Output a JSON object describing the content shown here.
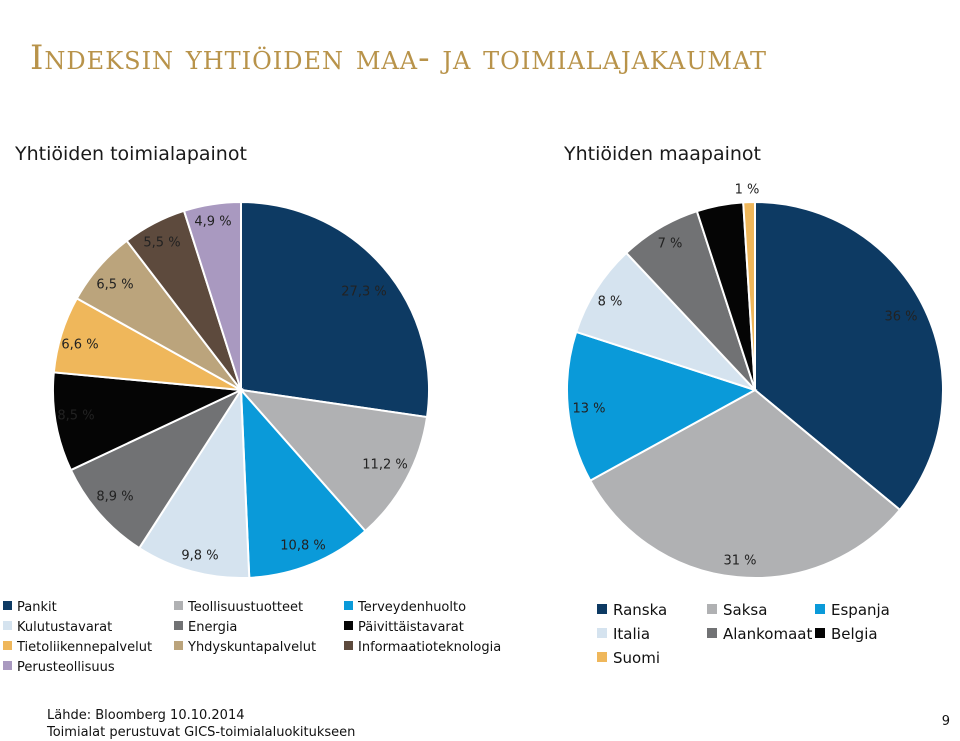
{
  "title": "Indeksin yhtiöiden maa- ja toimialajakaumat",
  "chart_data": [
    {
      "type": "pie",
      "title": "Yhtiöiden toimialapainot",
      "slices": [
        {
          "label": "Pankit",
          "value": 27.3,
          "value_label": "27,3 %",
          "color": "#0d3a63"
        },
        {
          "label": "Teollisuustuotteet",
          "value": 11.2,
          "value_label": "11,2 %",
          "color": "#b0b1b3"
        },
        {
          "label": "Terveydenhuolto",
          "value": 10.8,
          "value_label": "10,8 %",
          "color": "#0a9ad9"
        },
        {
          "label": "Kulutustavarat",
          "value": 9.8,
          "value_label": "9,8 %",
          "color": "#d5e3ef"
        },
        {
          "label": "Energia",
          "value": 8.9,
          "value_label": "8,9 %",
          "color": "#717274"
        },
        {
          "label": "Päivittäistavarat",
          "value": 8.5,
          "value_label": "8,5 %",
          "color": "#050505"
        },
        {
          "label": "Tietoliikennepalvelut",
          "value": 6.6,
          "value_label": "6,6 %",
          "color": "#efb75b"
        },
        {
          "label": "Yhdyskuntapalvelut",
          "value": 6.5,
          "value_label": "6,5 %",
          "color": "#bba47c"
        },
        {
          "label": "Informaatioteknologia",
          "value": 5.5,
          "value_label": "5,5 %",
          "color": "#5d4a3d"
        },
        {
          "label": "Perusteollisuus",
          "value": 4.9,
          "value_label": "4,9 %",
          "color": "#a999c0"
        }
      ],
      "legend_placement": "bottom"
    },
    {
      "type": "pie",
      "title": "Yhtiöiden maapainot",
      "slices": [
        {
          "label": "Ranska",
          "value": 36,
          "value_label": "36 %",
          "color": "#0d3a63"
        },
        {
          "label": "Saksa",
          "value": 31,
          "value_label": "31 %",
          "color": "#b0b1b3"
        },
        {
          "label": "Espanja",
          "value": 13,
          "value_label": "13 %",
          "color": "#0a9ad9"
        },
        {
          "label": "Italia",
          "value": 8,
          "value_label": "8 %",
          "color": "#d5e3ef"
        },
        {
          "label": "Alankomaat",
          "value": 7,
          "value_label": "7 %",
          "color": "#717274"
        },
        {
          "label": "Belgia",
          "value": 4,
          "value_label": "",
          "color": "#050505"
        },
        {
          "label": "Suomi",
          "value": 1,
          "value_label": "1 %",
          "color": "#efb75b"
        }
      ],
      "legend_placement": "bottom"
    }
  ],
  "legend_left": [
    "Pankit",
    "Teollisuustuotteet",
    "Terveydenhuolto",
    "Kulutustavarat",
    "Energia",
    "Päivittäistavarat",
    "Tietoliikennepalvelut",
    "Yhdyskuntapalvelut",
    "Informaatioteknologia",
    "Perusteollisuus"
  ],
  "legend_right": [
    "Ranska",
    "Saksa",
    "Espanja",
    "Italia",
    "Alankomaat",
    "Belgia",
    "Suomi"
  ],
  "footer": {
    "source": "Lähde: Bloomberg 10.10.2014",
    "note": "Toimialat perustuvat GICS-toimialaluokitukseen"
  },
  "page_number": "9"
}
